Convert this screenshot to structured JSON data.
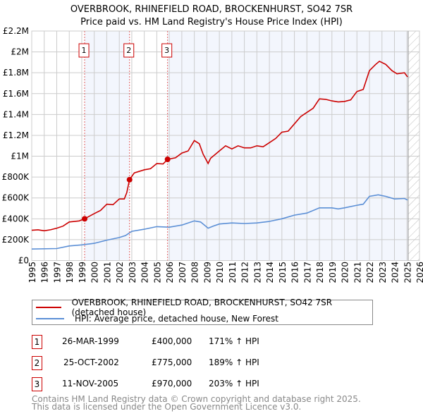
{
  "chart_data": {
    "type": "line",
    "title": "OVERBROOK, RHINEFIELD ROAD, BROCKENHURST, SO42 7SR",
    "subtitle": "Price paid vs. HM Land Registry's House Price Index (HPI)",
    "xlim": [
      1995,
      2026
    ],
    "ylim": [
      0,
      2200000
    ],
    "x_ticks": [
      1995,
      1996,
      1997,
      1998,
      1999,
      2000,
      2001,
      2002,
      2003,
      2004,
      2005,
      2006,
      2007,
      2008,
      2009,
      2010,
      2011,
      2012,
      2013,
      2014,
      2015,
      2016,
      2017,
      2018,
      2019,
      2020,
      2021,
      2022,
      2023,
      2024,
      2025,
      2026
    ],
    "y_ticks": [
      {
        "v": 0,
        "l": "£0"
      },
      {
        "v": 200000,
        "l": "£200K"
      },
      {
        "v": 400000,
        "l": "£400K"
      },
      {
        "v": 600000,
        "l": "£600K"
      },
      {
        "v": 800000,
        "l": "£800K"
      },
      {
        "v": 1000000,
        "l": "£1M"
      },
      {
        "v": 1200000,
        "l": "£1.2M"
      },
      {
        "v": 1400000,
        "l": "£1.4M"
      },
      {
        "v": 1600000,
        "l": "£1.6M"
      },
      {
        "v": 1800000,
        "l": "£1.8M"
      },
      {
        "v": 2000000,
        "l": "£2M"
      },
      {
        "v": 2200000,
        "l": "£2.2M"
      }
    ],
    "grid": true,
    "series": [
      {
        "name": "OVERBROOK, RHINEFIELD ROAD, BROCKENHURST, SO42 7SR (detached house)",
        "color": "#cc0000",
        "x": [
          1995,
          1995.5,
          1996,
          1996.5,
          1997,
          1997.5,
          1998,
          1998.8,
          1999.23,
          2000,
          2000.5,
          2001,
          2001.5,
          2002,
          2002.4,
          2002.6,
          2002.82,
          2003.2,
          2004,
          2004.5,
          2005,
          2005.5,
          2005.86,
          2006.5,
          2007,
          2007.5,
          2008,
          2008.4,
          2008.7,
          2009.1,
          2009.3,
          2010,
          2010.5,
          2011,
          2011.5,
          2012,
          2012.5,
          2013,
          2013.5,
          2014,
          2014.5,
          2015,
          2015.5,
          2016,
          2016.5,
          2017,
          2017.5,
          2018,
          2018.5,
          2019,
          2019.5,
          2020,
          2020.5,
          2021,
          2021.5,
          2022,
          2022.5,
          2022.8,
          2023.3,
          2023.8,
          2024.2,
          2024.8,
          2025.05
        ],
        "y": [
          290000,
          295000,
          285000,
          295000,
          310000,
          330000,
          370000,
          380000,
          400000,
          450000,
          480000,
          540000,
          535000,
          590000,
          590000,
          650000,
          775000,
          840000,
          870000,
          880000,
          930000,
          925000,
          970000,
          985000,
          1030000,
          1050000,
          1150000,
          1120000,
          1020000,
          930000,
          980000,
          1050000,
          1100000,
          1070000,
          1100000,
          1080000,
          1080000,
          1100000,
          1090000,
          1130000,
          1170000,
          1230000,
          1240000,
          1310000,
          1380000,
          1420000,
          1460000,
          1550000,
          1545000,
          1530000,
          1520000,
          1525000,
          1540000,
          1620000,
          1640000,
          1820000,
          1880000,
          1910000,
          1880000,
          1820000,
          1790000,
          1800000,
          1760000
        ]
      },
      {
        "name": "HPI: Average price, detached house, New Forest",
        "color": "#5b8fd6",
        "x": [
          1995,
          1997,
          1998,
          1999,
          2000,
          2001,
          2002,
          2002.5,
          2003,
          2004,
          2005,
          2006,
          2007,
          2008,
          2008.5,
          2009.1,
          2009.5,
          2010,
          2011,
          2012,
          2013,
          2014,
          2015,
          2016,
          2017,
          2018,
          2019,
          2019.5,
          2020,
          2021,
          2021.5,
          2022,
          2022.7,
          2023.3,
          2024,
          2024.8,
          2025.05
        ],
        "y": [
          110000,
          115000,
          140000,
          150000,
          165000,
          195000,
          220000,
          240000,
          280000,
          300000,
          325000,
          320000,
          340000,
          380000,
          370000,
          310000,
          330000,
          350000,
          360000,
          355000,
          360000,
          375000,
          400000,
          435000,
          455000,
          505000,
          505000,
          495000,
          505000,
          530000,
          540000,
          615000,
          630000,
          615000,
          590000,
          595000,
          580000
        ]
      }
    ],
    "sales": [
      {
        "label": "1",
        "x": 1999.23,
        "price": 400000,
        "date": "26-MAR-1999",
        "price_text": "£400,000",
        "hpi_text": "171% ↑ HPI"
      },
      {
        "label": "2",
        "x": 2002.82,
        "price": 775000,
        "date": "25-OCT-2002",
        "price_text": "£775,000",
        "hpi_text": "189% ↑ HPI"
      },
      {
        "label": "3",
        "x": 2005.86,
        "price": 970000,
        "date": "11-NOV-2005",
        "price_text": "£970,000",
        "hpi_text": "203% ↑ HPI"
      }
    ],
    "data_end": 2025.1
  },
  "legend": {
    "property": "OVERBROOK, RHINEFIELD ROAD, BROCKENHURST, SO42 7SR (detached house)",
    "hpi": "HPI: Average price, detached house, New Forest"
  },
  "footer": {
    "line1": "Contains HM Land Registry data © Crown copyright and database right 2025.",
    "line2": "This data is licensed under the Open Government Licence v3.0."
  }
}
